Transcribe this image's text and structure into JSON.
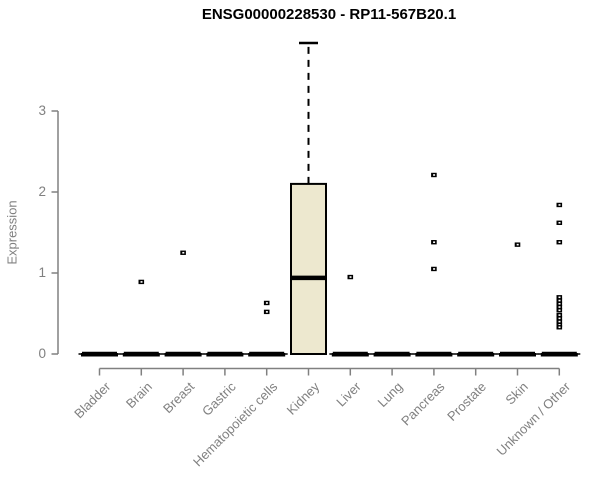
{
  "page": {
    "title": "ENSG00000228530 - RP11-567B20.1"
  },
  "chart_data": {
    "type": "boxplot",
    "title": "ENSG00000228530 - RP11-567B20.1",
    "xlabel": "",
    "ylabel": "Expression",
    "yticks": [
      0,
      1,
      2,
      3
    ],
    "ylim": [
      0,
      3.9
    ],
    "grid": false,
    "legend": "none",
    "categories": [
      "Bladder",
      "Brain",
      "Breast",
      "Gastric",
      "Hematopoietic cells",
      "Kidney",
      "Liver",
      "Lung",
      "Pancreas",
      "Prostate",
      "Skin",
      "Unknown / Other"
    ],
    "boxes": [
      {
        "category": "Bladder",
        "whisker_low": 0,
        "q1": 0,
        "median": 0,
        "q3": 0,
        "whisker_high": 0,
        "outliers": []
      },
      {
        "category": "Brain",
        "whisker_low": 0,
        "q1": 0,
        "median": 0,
        "q3": 0,
        "whisker_high": 0,
        "outliers": [
          0.89
        ]
      },
      {
        "category": "Breast",
        "whisker_low": 0,
        "q1": 0,
        "median": 0,
        "q3": 0,
        "whisker_high": 0,
        "outliers": [
          1.25
        ]
      },
      {
        "category": "Gastric",
        "whisker_low": 0,
        "q1": 0,
        "median": 0,
        "q3": 0,
        "whisker_high": 0,
        "outliers": []
      },
      {
        "category": "Hematopoietic cells",
        "whisker_low": 0,
        "q1": 0,
        "median": 0,
        "q3": 0,
        "whisker_high": 0,
        "outliers": [
          0.63,
          0.52
        ]
      },
      {
        "category": "Kidney",
        "whisker_low": 0,
        "q1": 0,
        "median": 0.94,
        "q3": 2.1,
        "whisker_high": 3.84,
        "outliers": []
      },
      {
        "category": "Liver",
        "whisker_low": 0,
        "q1": 0,
        "median": 0,
        "q3": 0,
        "whisker_high": 0,
        "outliers": [
          0.95
        ]
      },
      {
        "category": "Lung",
        "whisker_low": 0,
        "q1": 0,
        "median": 0,
        "q3": 0,
        "whisker_high": 0,
        "outliers": []
      },
      {
        "category": "Pancreas",
        "whisker_low": 0,
        "q1": 0,
        "median": 0,
        "q3": 0,
        "whisker_high": 0,
        "outliers": [
          2.21,
          1.38,
          1.05
        ]
      },
      {
        "category": "Prostate",
        "whisker_low": 0,
        "q1": 0,
        "median": 0,
        "q3": 0,
        "whisker_high": 0,
        "outliers": []
      },
      {
        "category": "Skin",
        "whisker_low": 0,
        "q1": 0,
        "median": 0,
        "q3": 0,
        "whisker_high": 0,
        "outliers": [
          1.35
        ]
      },
      {
        "category": "Unknown / Other",
        "whisker_low": 0,
        "q1": 0,
        "median": 0,
        "q3": 0,
        "whisker_high": 0,
        "outliers": [
          1.84,
          1.62,
          1.38,
          0.7,
          0.66,
          0.62,
          0.58,
          0.54,
          0.48,
          0.44,
          0.4,
          0.36,
          0.33
        ]
      }
    ],
    "colors": {
      "box_fill": "#EDE8CF",
      "box_border": "#000000",
      "median": "#000000",
      "whisker": "#000000",
      "outlier": "#000000",
      "axis": "#808080",
      "tick_label": "#808080",
      "title": "#000000",
      "background": "#FFFFFF"
    }
  }
}
